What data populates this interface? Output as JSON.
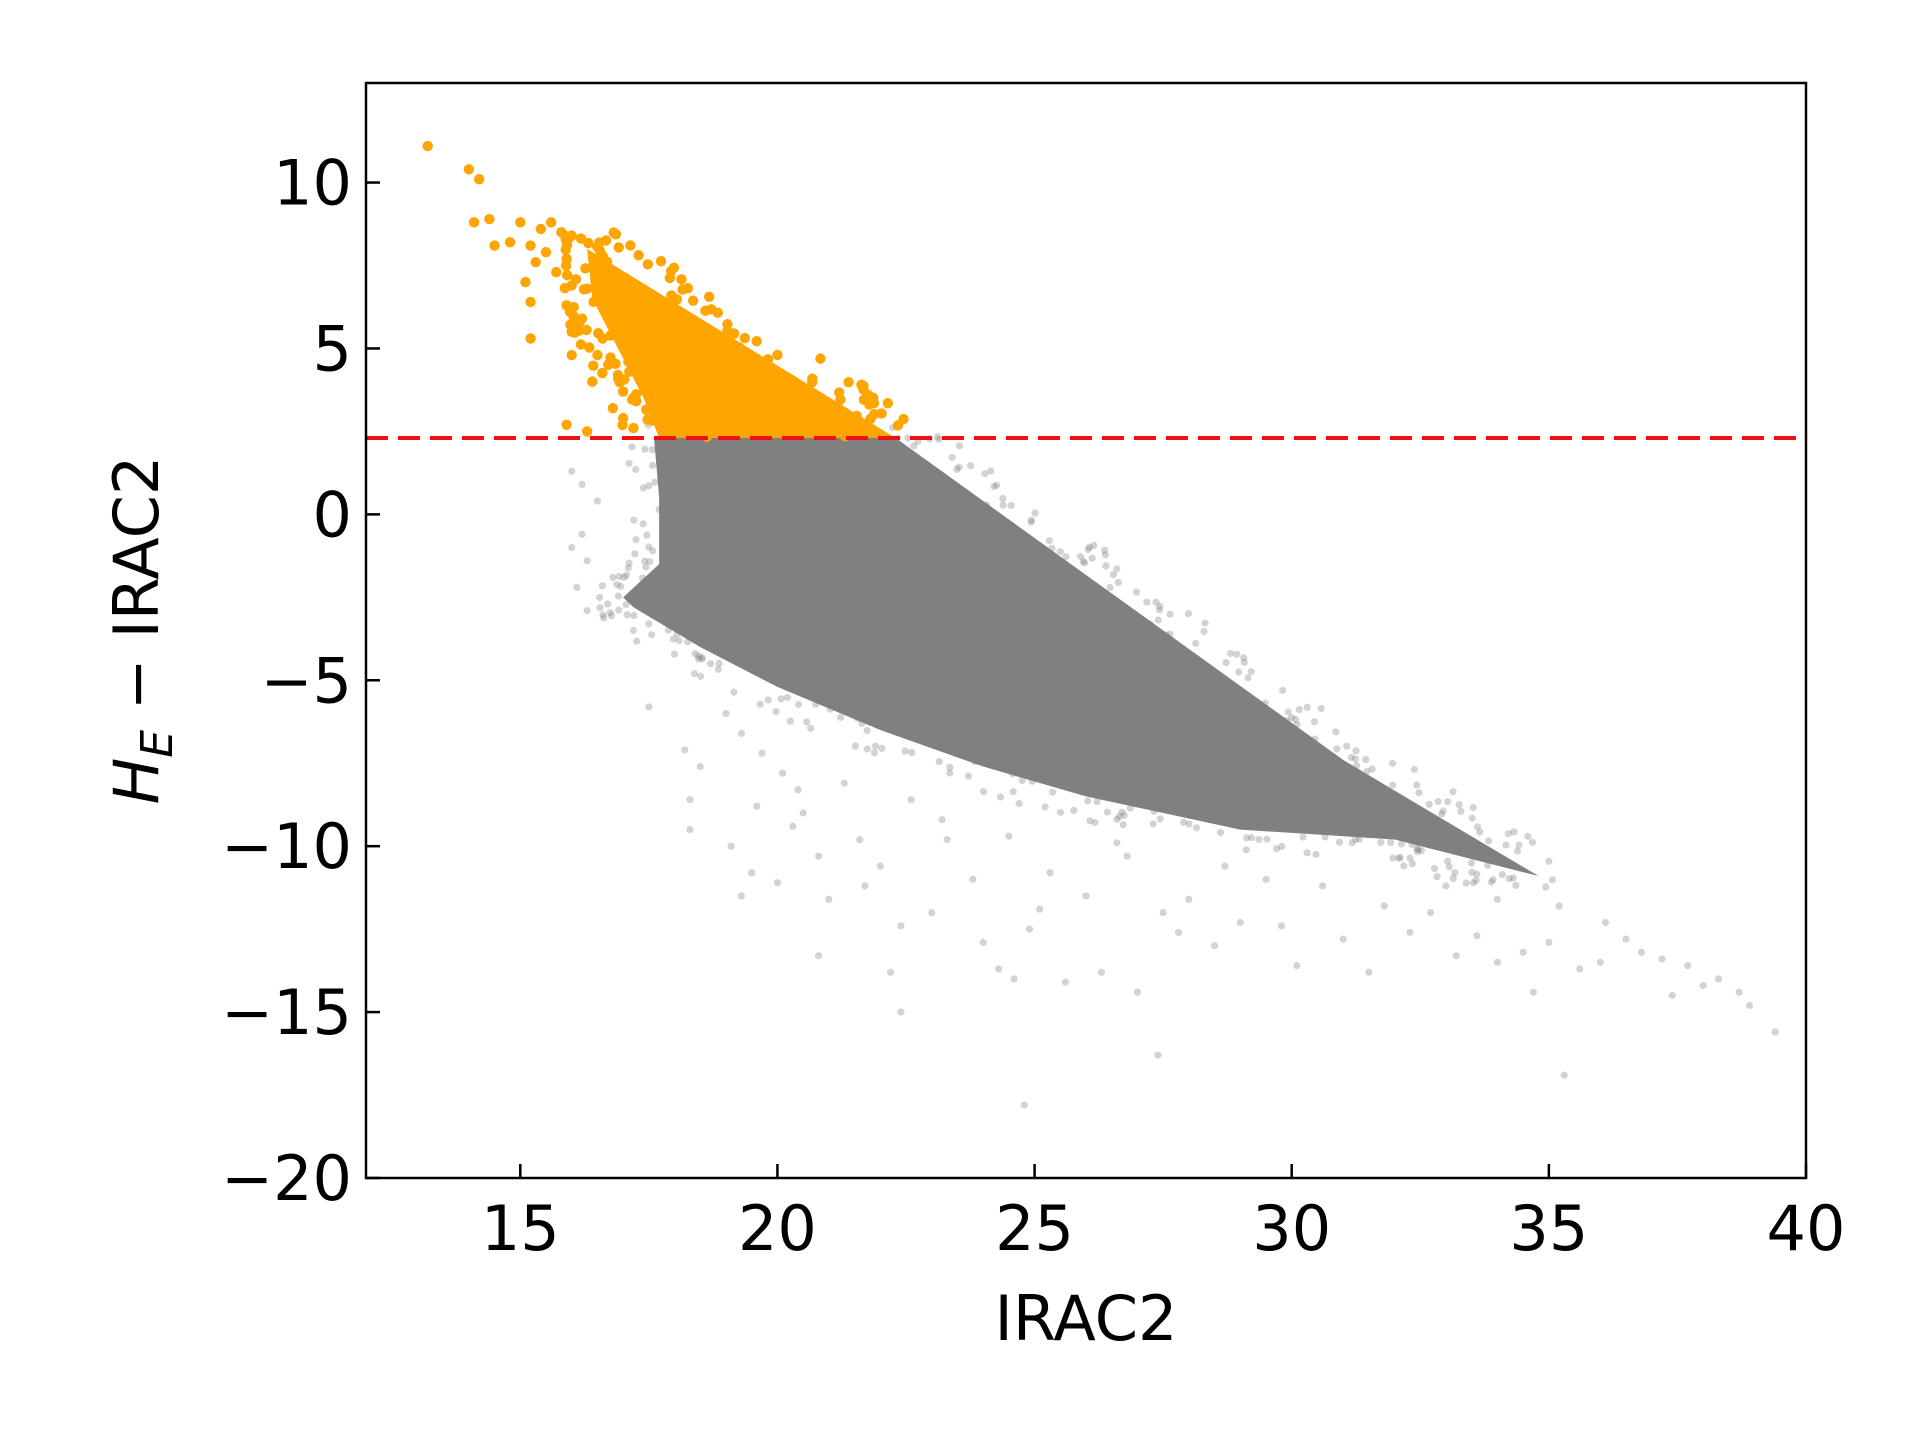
{
  "chart_data": {
    "type": "scatter",
    "title": "",
    "xlabel": "IRAC2",
    "ylabel": {
      "base": "H",
      "subscript": "E",
      "rest": " − IRAC2"
    },
    "xlim": [
      12,
      40
    ],
    "ylim": [
      -20,
      13
    ],
    "xticks": [
      15,
      20,
      25,
      30,
      35,
      40
    ],
    "yticks": [
      -20,
      -15,
      -10,
      -5,
      0,
      5,
      10
    ],
    "xtick_labels": [
      "15",
      "20",
      "25",
      "30",
      "35",
      "40"
    ],
    "ytick_labels": [
      "−20",
      "−15",
      "−10",
      "−5",
      "0",
      "5",
      "10"
    ],
    "grid": false,
    "legend": "none",
    "threshold": {
      "y": 2.3,
      "style": "dashed",
      "color": "#ee1111"
    },
    "series": [
      {
        "role": "selected (above threshold)",
        "color": "#ffa500",
        "dense_region": [
          [
            16.3,
            8.0
          ],
          [
            22.3,
            2.3
          ],
          [
            17.7,
            2.3
          ],
          [
            17.4,
            3.5
          ],
          [
            16.4,
            6.5
          ]
        ],
        "scattered_points": [
          [
            13.2,
            11.1
          ],
          [
            14.0,
            10.4
          ],
          [
            14.2,
            10.1
          ],
          [
            14.4,
            8.9
          ],
          [
            14.1,
            8.8
          ],
          [
            15.0,
            8.8
          ],
          [
            15.4,
            8.6
          ],
          [
            15.6,
            8.8
          ],
          [
            15.8,
            8.5
          ],
          [
            16.0,
            8.4
          ],
          [
            14.8,
            8.2
          ],
          [
            15.2,
            8.1
          ],
          [
            14.5,
            8.1
          ],
          [
            15.5,
            7.9
          ],
          [
            15.9,
            7.7
          ],
          [
            15.3,
            7.6
          ],
          [
            15.7,
            7.3
          ],
          [
            15.1,
            7.0
          ],
          [
            16.0,
            6.9
          ],
          [
            15.2,
            6.4
          ],
          [
            15.9,
            6.3
          ],
          [
            16.2,
            5.9
          ],
          [
            15.2,
            5.3
          ],
          [
            16.0,
            5.5
          ],
          [
            16.6,
            5.3
          ],
          [
            16.5,
            4.8
          ],
          [
            16.0,
            4.8
          ],
          [
            16.9,
            4.2
          ],
          [
            17.0,
            3.7
          ],
          [
            16.8,
            3.2
          ],
          [
            15.9,
            2.7
          ],
          [
            16.3,
            2.5
          ],
          [
            17.2,
            2.6
          ],
          [
            17.0,
            2.9
          ],
          [
            16.4,
            4.0
          ],
          [
            16.8,
            5.8
          ],
          [
            16.3,
            6.8
          ],
          [
            17.1,
            4.6
          ]
        ]
      },
      {
        "role": "other sources",
        "color": "#808080",
        "dense_region": [
          [
            17.6,
            2.3
          ],
          [
            22.3,
            2.3
          ],
          [
            31.0,
            -7.4
          ],
          [
            33.6,
            -9.8
          ],
          [
            34.8,
            -10.9
          ],
          [
            32.0,
            -9.8
          ],
          [
            29.0,
            -9.5
          ],
          [
            26.0,
            -8.5
          ],
          [
            24.0,
            -7.6
          ],
          [
            22.0,
            -6.5
          ],
          [
            20.0,
            -5.2
          ],
          [
            18.5,
            -4.0
          ],
          [
            17.2,
            -2.8
          ],
          [
            17.0,
            -2.5
          ],
          [
            17.7,
            -1.5
          ],
          [
            17.7,
            0.5
          ]
        ],
        "scattered_points": [
          [
            16.0,
            1.3
          ],
          [
            16.2,
            0.9
          ],
          [
            16.5,
            0.4
          ],
          [
            16.2,
            -0.6
          ],
          [
            16.0,
            -1.0
          ],
          [
            16.3,
            -1.4
          ],
          [
            16.8,
            -1.9
          ],
          [
            16.1,
            -2.2
          ],
          [
            16.3,
            -2.9
          ],
          [
            16.7,
            -2.7
          ],
          [
            17.5,
            -3.3
          ],
          [
            17.2,
            -3.5
          ],
          [
            18.4,
            -4.2
          ],
          [
            18.7,
            -4.5
          ],
          [
            17.5,
            -5.8
          ],
          [
            18.2,
            -7.1
          ],
          [
            18.5,
            -7.6
          ],
          [
            19.0,
            -6.0
          ],
          [
            19.3,
            -6.6
          ],
          [
            19.7,
            -7.2
          ],
          [
            20.1,
            -7.8
          ],
          [
            20.4,
            -8.3
          ],
          [
            18.3,
            -8.6
          ],
          [
            18.3,
            -9.5
          ],
          [
            19.1,
            -10.0
          ],
          [
            20.5,
            -9.0
          ],
          [
            20.8,
            -10.3
          ],
          [
            19.5,
            -10.8
          ],
          [
            19.3,
            -11.5
          ],
          [
            20.0,
            -11.1
          ],
          [
            21.0,
            -11.6
          ],
          [
            20.8,
            -13.3
          ],
          [
            21.7,
            -11.2
          ],
          [
            22.0,
            -10.6
          ],
          [
            22.4,
            -12.4
          ],
          [
            22.2,
            -13.8
          ],
          [
            22.4,
            -15.0
          ],
          [
            23.0,
            -12.0
          ],
          [
            23.3,
            -9.8
          ],
          [
            23.8,
            -11.0
          ],
          [
            24.0,
            -12.9
          ],
          [
            24.3,
            -13.7
          ],
          [
            24.6,
            -14.0
          ],
          [
            24.9,
            -12.5
          ],
          [
            25.3,
            -10.8
          ],
          [
            25.6,
            -14.1
          ],
          [
            26.0,
            -11.5
          ],
          [
            26.3,
            -13.8
          ],
          [
            26.6,
            -9.9
          ],
          [
            27.0,
            -14.4
          ],
          [
            27.5,
            -12.0
          ],
          [
            27.4,
            -16.3
          ],
          [
            24.8,
            -17.8
          ],
          [
            28.0,
            -11.6
          ],
          [
            28.5,
            -13.0
          ],
          [
            29.0,
            -12.3
          ],
          [
            30.1,
            -13.6
          ],
          [
            29.5,
            -11.0
          ],
          [
            30.6,
            -11.2
          ],
          [
            31.0,
            -12.8
          ],
          [
            31.5,
            -13.8
          ],
          [
            31.8,
            -11.8
          ],
          [
            32.3,
            -12.6
          ],
          [
            32.7,
            -12.0
          ],
          [
            33.2,
            -13.3
          ],
          [
            33.6,
            -12.7
          ],
          [
            34.0,
            -13.5
          ],
          [
            34.5,
            -13.2
          ],
          [
            34.7,
            -14.4
          ],
          [
            35.0,
            -12.9
          ],
          [
            35.3,
            -16.9
          ],
          [
            35.6,
            -13.7
          ],
          [
            36.0,
            -13.5
          ],
          [
            36.5,
            -12.8
          ],
          [
            36.8,
            -13.2
          ],
          [
            37.2,
            -13.4
          ],
          [
            37.7,
            -13.6
          ],
          [
            38.0,
            -14.2
          ],
          [
            38.3,
            -14.0
          ],
          [
            38.7,
            -14.4
          ],
          [
            38.9,
            -14.8
          ],
          [
            39.4,
            -15.6
          ],
          [
            37.4,
            -14.5
          ],
          [
            36.1,
            -12.3
          ],
          [
            35.2,
            -11.8
          ],
          [
            34.0,
            -11.6
          ],
          [
            33.0,
            -11.2
          ],
          [
            21.3,
            -8.1
          ],
          [
            23.2,
            -9.2
          ],
          [
            22.6,
            -8.6
          ],
          [
            24.5,
            -9.7
          ],
          [
            26.8,
            -10.3
          ],
          [
            28.7,
            -10.6
          ],
          [
            30.3,
            -10.2
          ],
          [
            19.6,
            -8.8
          ],
          [
            20.3,
            -9.4
          ],
          [
            21.6,
            -9.8
          ],
          [
            25.1,
            -11.9
          ],
          [
            27.8,
            -12.6
          ],
          [
            29.8,
            -12.4
          ]
        ]
      }
    ]
  }
}
